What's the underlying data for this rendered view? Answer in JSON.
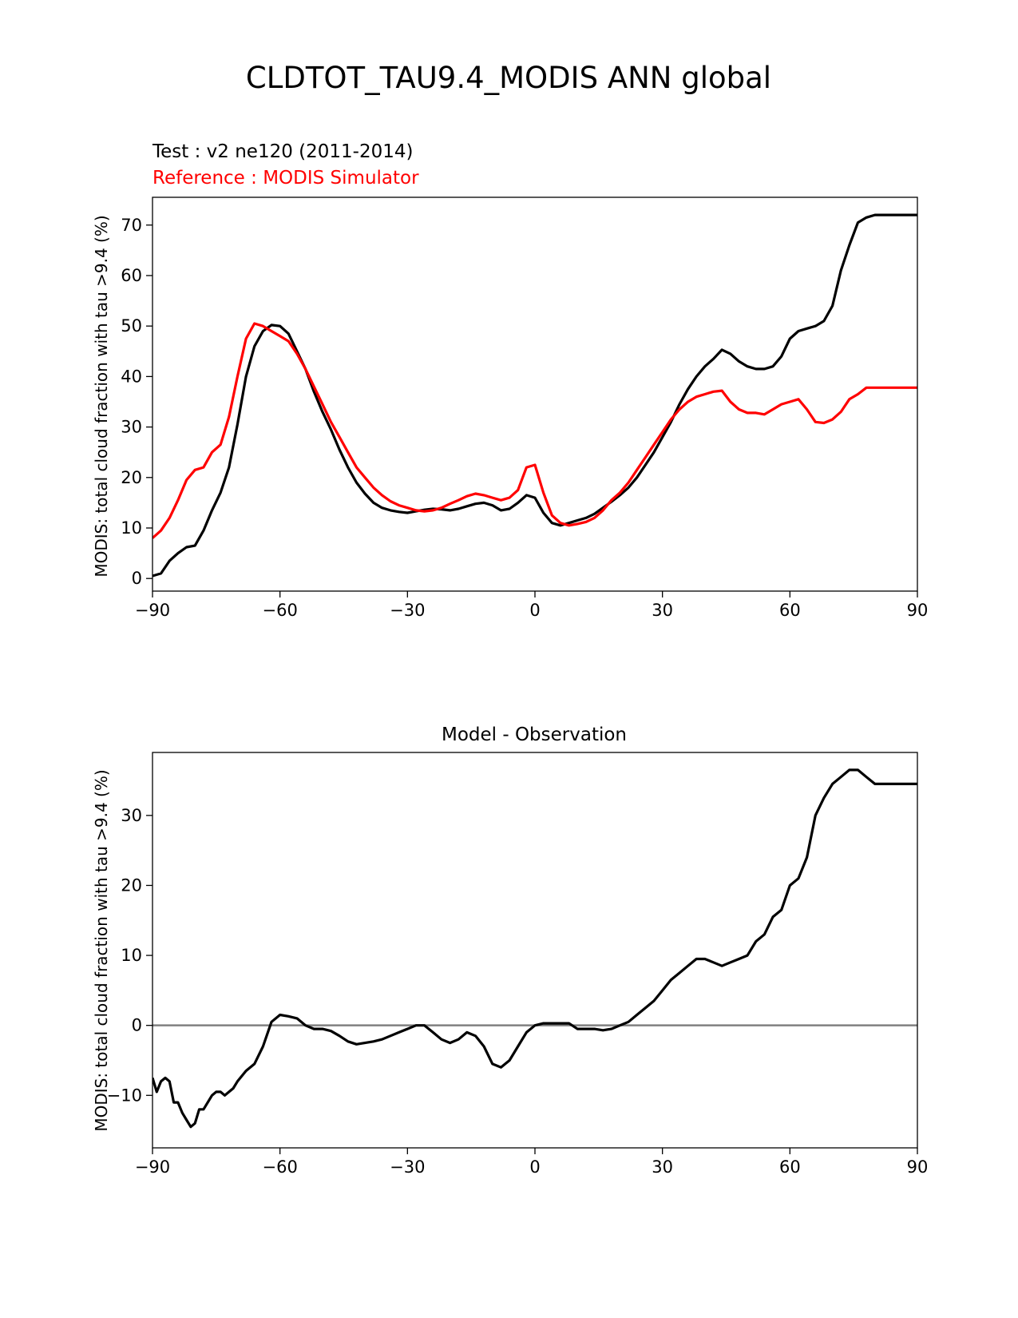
{
  "figure_title": "CLDTOT_TAU9.4_MODIS ANN global",
  "colors": {
    "test": "#000000",
    "reference": "#ff0000",
    "zero_line": "#808080"
  },
  "chart_data": [
    {
      "type": "line",
      "test_label": "Test : v2 ne120 (2011-2014)",
      "reference_label": "Reference : MODIS Simulator",
      "ylabel": "MODIS: total cloud fraction with tau >9.4 (%)",
      "xlim": [
        -90,
        90
      ],
      "ylim": [
        -2.5,
        75.5
      ],
      "xticks": [
        -90,
        -60,
        -30,
        0,
        30,
        60,
        90
      ],
      "xtick_labels": [
        "−90",
        "−60",
        "−30",
        "0",
        "30",
        "60",
        "90"
      ],
      "yticks": [
        0,
        10,
        20,
        30,
        40,
        50,
        60,
        70
      ],
      "ytick_labels": [
        "0",
        "10",
        "20",
        "30",
        "40",
        "50",
        "60",
        "70"
      ],
      "x": [
        -90,
        -88,
        -86,
        -84,
        -82,
        -80,
        -78,
        -76,
        -74,
        -72,
        -70,
        -68,
        -66,
        -64,
        -62,
        -60,
        -58,
        -56,
        -54,
        -52,
        -50,
        -48,
        -46,
        -44,
        -42,
        -40,
        -38,
        -36,
        -34,
        -32,
        -30,
        -28,
        -26,
        -24,
        -22,
        -20,
        -18,
        -16,
        -14,
        -12,
        -10,
        -8,
        -6,
        -4,
        -2,
        0,
        2,
        4,
        6,
        8,
        10,
        12,
        14,
        16,
        18,
        20,
        22,
        24,
        26,
        28,
        30,
        32,
        34,
        36,
        38,
        40,
        42,
        44,
        46,
        48,
        50,
        52,
        54,
        56,
        58,
        60,
        62,
        64,
        66,
        68,
        70,
        72,
        74,
        76,
        78,
        80,
        82,
        84,
        86,
        88,
        90
      ],
      "series": [
        {
          "key": "test",
          "values": [
            0.5,
            1.0,
            3.5,
            5.0,
            6.2,
            6.5,
            9.5,
            13.5,
            17.0,
            22.0,
            30.5,
            40.0,
            46.0,
            49.0,
            50.2,
            50.0,
            48.5,
            45.0,
            41.5,
            37.0,
            33.0,
            29.5,
            25.5,
            22.0,
            19.0,
            16.8,
            15.0,
            14.0,
            13.5,
            13.2,
            13.0,
            13.3,
            13.6,
            13.8,
            13.7,
            13.5,
            13.8,
            14.3,
            14.8,
            15.0,
            14.5,
            13.5,
            13.8,
            15.0,
            16.5,
            16.0,
            13.0,
            11.0,
            10.5,
            11.0,
            11.5,
            12.0,
            12.8,
            14.0,
            15.2,
            16.5,
            18.0,
            20.0,
            22.5,
            25.0,
            28.0,
            31.0,
            34.5,
            37.5,
            40.0,
            42.0,
            43.5,
            45.3,
            44.5,
            43.0,
            42.0,
            41.5,
            41.5,
            42.0,
            44.0,
            47.5,
            49.0,
            49.5,
            50.0,
            51.0,
            54.0,
            61.0,
            66.0,
            70.5,
            71.5,
            72.0,
            72.0,
            72.0,
            72.0,
            72.0,
            72.0
          ]
        },
        {
          "key": "reference",
          "values": [
            8.0,
            9.5,
            12.0,
            15.5,
            19.5,
            21.5,
            22.0,
            25.0,
            26.5,
            32.0,
            40.0,
            47.5,
            50.5,
            50.0,
            49.0,
            48.0,
            47.0,
            44.5,
            41.5,
            38.0,
            34.5,
            31.0,
            28.0,
            25.0,
            22.0,
            20.0,
            18.0,
            16.5,
            15.3,
            14.5,
            14.0,
            13.5,
            13.3,
            13.5,
            14.0,
            14.8,
            15.5,
            16.3,
            16.8,
            16.5,
            16.0,
            15.5,
            16.0,
            17.5,
            22.0,
            22.5,
            17.0,
            12.5,
            11.0,
            10.5,
            10.8,
            11.2,
            12.0,
            13.5,
            15.5,
            17.0,
            19.0,
            21.5,
            24.0,
            26.5,
            29.0,
            31.5,
            33.5,
            35.0,
            36.0,
            36.5,
            37.0,
            37.2,
            35.0,
            33.5,
            32.8,
            32.8,
            32.5,
            33.5,
            34.5,
            35.0,
            35.5,
            33.5,
            31.0,
            30.8,
            31.5,
            33.0,
            35.5,
            36.5,
            37.8,
            37.8,
            37.8,
            37.8,
            37.8,
            37.8,
            37.8
          ]
        }
      ]
    },
    {
      "type": "line",
      "title": "Model - Observation",
      "ylabel": "MODIS: total cloud fraction with tau >9.4 (%)",
      "xlim": [
        -90,
        90
      ],
      "ylim": [
        -17.5,
        39
      ],
      "xticks": [
        -90,
        -60,
        -30,
        0,
        30,
        60,
        90
      ],
      "xtick_labels": [
        "−90",
        "−60",
        "−30",
        "0",
        "30",
        "60",
        "90"
      ],
      "yticks": [
        -10,
        0,
        10,
        20,
        30
      ],
      "ytick_labels": [
        "−10",
        "0",
        "10",
        "20",
        "30"
      ],
      "zero_line": 0,
      "x": [
        -90,
        -89,
        -88,
        -87,
        -86,
        -85,
        -84,
        -83,
        -82,
        -81,
        -80,
        -79,
        -78,
        -77,
        -76,
        -75,
        -74,
        -73,
        -72,
        -71,
        -70,
        -68,
        -66,
        -64,
        -62,
        -60,
        -58,
        -56,
        -54,
        -52,
        -50,
        -48,
        -46,
        -44,
        -42,
        -40,
        -38,
        -36,
        -34,
        -32,
        -30,
        -28,
        -26,
        -24,
        -22,
        -20,
        -18,
        -16,
        -14,
        -12,
        -10,
        -8,
        -6,
        -4,
        -2,
        0,
        2,
        4,
        6,
        8,
        10,
        12,
        14,
        16,
        18,
        20,
        22,
        24,
        26,
        28,
        30,
        32,
        34,
        36,
        38,
        40,
        42,
        44,
        46,
        48,
        50,
        52,
        54,
        56,
        58,
        60,
        62,
        64,
        66,
        68,
        70,
        72,
        74,
        76,
        78,
        80,
        81,
        82,
        83,
        84,
        85,
        86,
        87,
        88,
        89,
        90
      ],
      "series": [
        {
          "key": "difference",
          "values": [
            -7.5,
            -9.5,
            -8.0,
            -7.5,
            -8.0,
            -11.0,
            -11.0,
            -12.5,
            -13.5,
            -14.5,
            -14.0,
            -12.0,
            -12.0,
            -11.0,
            -10.0,
            -9.5,
            -9.5,
            -10.0,
            -9.5,
            -9.0,
            -8.0,
            -6.5,
            -5.5,
            -3.0,
            0.5,
            1.5,
            1.3,
            1.0,
            0.0,
            -0.5,
            -0.5,
            -0.8,
            -1.5,
            -2.3,
            -2.7,
            -2.5,
            -2.3,
            -2.0,
            -1.5,
            -1.0,
            -0.5,
            0.0,
            0.0,
            -1.0,
            -2.0,
            -2.5,
            -2.0,
            -1.0,
            -1.5,
            -3.0,
            -5.5,
            -6.0,
            -5.0,
            -3.0,
            -1.0,
            0.0,
            0.3,
            0.3,
            0.3,
            0.3,
            -0.5,
            -0.5,
            -0.5,
            -0.7,
            -0.5,
            0.0,
            0.5,
            1.5,
            2.5,
            3.5,
            5.0,
            6.5,
            7.5,
            8.5,
            9.5,
            9.5,
            9.0,
            8.5,
            9.0,
            9.5,
            10.0,
            12.0,
            13.0,
            15.5,
            16.5,
            20.0,
            21.0,
            24.0,
            30.0,
            32.5,
            34.5,
            35.5,
            36.5,
            36.5,
            35.5,
            34.5,
            34.5,
            34.5,
            34.5,
            34.5,
            34.5,
            34.5,
            34.5,
            34.5,
            34.5,
            34.5
          ]
        }
      ]
    }
  ]
}
